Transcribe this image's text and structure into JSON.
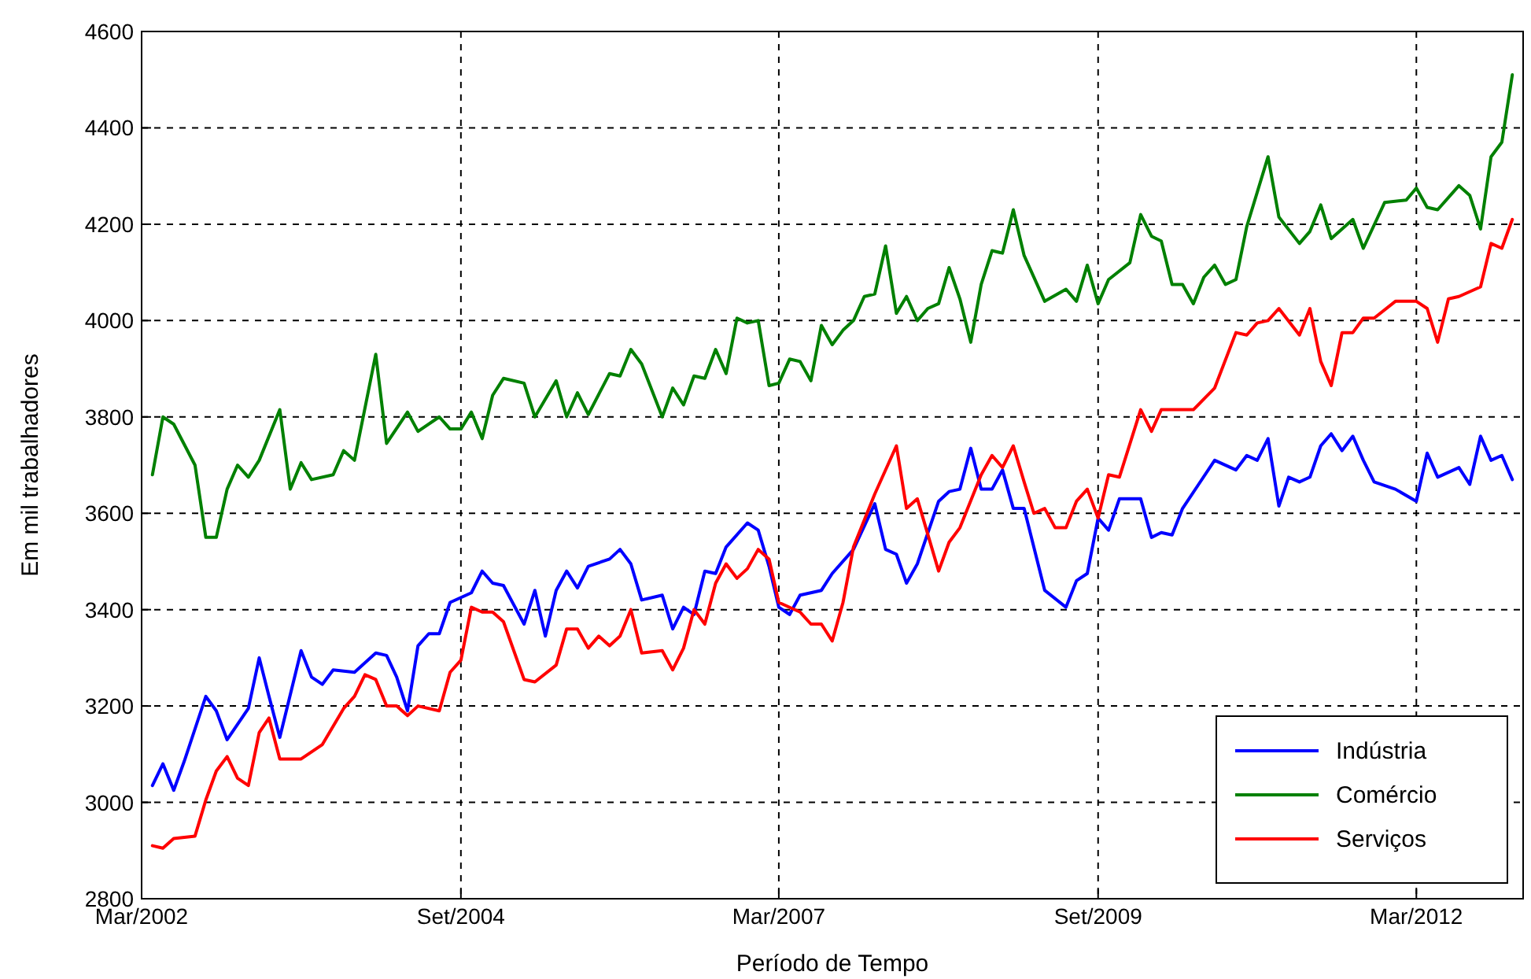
{
  "chart_data": {
    "type": "line",
    "xlabel": "Período de Tempo",
    "ylabel": "Em mil trabalhadores",
    "xlim": [
      "2002-03",
      "2013-01"
    ],
    "ylim": [
      2800,
      4600
    ],
    "xticks": [
      {
        "value": "2002-03",
        "label": "Mar/2002"
      },
      {
        "value": "2004-09",
        "label": "Set/2004"
      },
      {
        "value": "2007-03",
        "label": "Mar/2007"
      },
      {
        "value": "2009-09",
        "label": "Set/2009"
      },
      {
        "value": "2012-03",
        "label": "Mar/2012"
      }
    ],
    "yticks": [
      2800,
      3000,
      3200,
      3400,
      3600,
      3800,
      4000,
      4200,
      4400,
      4600
    ],
    "grid": true,
    "legend": "bottom right",
    "line_style": "solid",
    "marker": "none",
    "series": [
      {
        "name": "Indústria",
        "color": "#0000ff",
        "x": [
          "2002-04",
          "2002-05",
          "2002-06",
          "2002-07",
          "2002-09",
          "2002-10",
          "2002-11",
          "2003-01",
          "2003-02",
          "2003-03",
          "2003-04",
          "2003-06",
          "2003-07",
          "2003-08",
          "2003-09",
          "2003-11",
          "2004-01",
          "2004-02",
          "2004-03",
          "2004-04",
          "2004-05",
          "2004-06",
          "2004-07",
          "2004-08",
          "2004-10",
          "2004-11",
          "2004-12",
          "2005-01",
          "2005-03",
          "2005-04",
          "2005-05",
          "2005-06",
          "2005-07",
          "2005-08",
          "2005-09",
          "2005-11",
          "2005-12",
          "2006-01",
          "2006-02",
          "2006-04",
          "2006-05",
          "2006-06",
          "2006-07",
          "2006-08",
          "2006-09",
          "2006-10",
          "2006-12",
          "2007-01",
          "2007-02",
          "2007-03",
          "2007-04",
          "2007-05",
          "2007-07",
          "2007-08",
          "2007-10",
          "2007-12",
          "2008-01",
          "2008-02",
          "2008-03",
          "2008-04",
          "2008-06",
          "2008-07",
          "2008-08",
          "2008-09",
          "2008-10",
          "2008-11",
          "2008-12",
          "2009-01",
          "2009-02",
          "2009-04",
          "2009-06",
          "2009-07",
          "2009-08",
          "2009-09",
          "2009-10",
          "2009-11",
          "2010-01",
          "2010-02",
          "2010-03",
          "2010-04",
          "2010-05",
          "2010-08",
          "2010-10",
          "2010-11",
          "2010-12",
          "2011-01",
          "2011-02",
          "2011-03",
          "2011-04",
          "2011-05",
          "2011-06",
          "2011-07",
          "2011-08",
          "2011-09",
          "2011-10",
          "2011-11",
          "2012-01",
          "2012-03",
          "2012-04",
          "2012-05",
          "2012-07",
          "2012-08",
          "2012-09",
          "2012-10",
          "2012-11",
          "2012-12"
        ],
        "values": [
          3035,
          3080,
          3025,
          3085,
          3220,
          3190,
          3130,
          3195,
          3300,
          3220,
          3135,
          3315,
          3260,
          3245,
          3275,
          3270,
          3310,
          3305,
          3260,
          3190,
          3325,
          3350,
          3350,
          3415,
          3435,
          3480,
          3455,
          3450,
          3370,
          3440,
          3345,
          3440,
          3480,
          3445,
          3490,
          3505,
          3525,
          3495,
          3420,
          3430,
          3360,
          3405,
          3390,
          3480,
          3475,
          3530,
          3580,
          3565,
          3490,
          3405,
          3390,
          3430,
          3440,
          3475,
          3525,
          3620,
          3525,
          3515,
          3455,
          3495,
          3625,
          3645,
          3650,
          3735,
          3650,
          3650,
          3690,
          3610,
          3610,
          3440,
          3405,
          3460,
          3475,
          3590,
          3565,
          3630,
          3630,
          3550,
          3560,
          3555,
          3610,
          3710,
          3690,
          3720,
          3710,
          3755,
          3615,
          3675,
          3665,
          3675,
          3740,
          3765,
          3730,
          3760,
          3710,
          3665,
          3650,
          3625,
          3725,
          3675,
          3695,
          3660,
          3760,
          3710,
          3720,
          3670
        ]
      },
      {
        "name": "Comércio",
        "color": "#008000",
        "x": [
          "2002-04",
          "2002-05",
          "2002-06",
          "2002-08",
          "2002-09",
          "2002-10",
          "2002-11",
          "2002-12",
          "2003-01",
          "2003-02",
          "2003-04",
          "2003-05",
          "2003-06",
          "2003-07",
          "2003-09",
          "2003-10",
          "2003-11",
          "2004-01",
          "2004-02",
          "2004-04",
          "2004-05",
          "2004-07",
          "2004-08",
          "2004-09",
          "2004-10",
          "2004-11",
          "2004-12",
          "2005-01",
          "2005-03",
          "2005-04",
          "2005-06",
          "2005-07",
          "2005-08",
          "2005-09",
          "2005-11",
          "2005-12",
          "2006-01",
          "2006-02",
          "2006-04",
          "2006-05",
          "2006-06",
          "2006-07",
          "2006-08",
          "2006-09",
          "2006-10",
          "2006-11",
          "2006-12",
          "2007-01",
          "2007-02",
          "2007-03",
          "2007-04",
          "2007-05",
          "2007-06",
          "2007-07",
          "2007-08",
          "2007-09",
          "2007-10",
          "2007-11",
          "2007-12",
          "2008-01",
          "2008-02",
          "2008-03",
          "2008-04",
          "2008-05",
          "2008-06",
          "2008-07",
          "2008-08",
          "2008-09",
          "2008-10",
          "2008-11",
          "2008-12",
          "2009-01",
          "2009-02",
          "2009-04",
          "2009-06",
          "2009-07",
          "2009-08",
          "2009-09",
          "2009-10",
          "2009-12",
          "2010-01",
          "2010-02",
          "2010-03",
          "2010-04",
          "2010-05",
          "2010-06",
          "2010-07",
          "2010-08",
          "2010-09",
          "2010-10",
          "2010-11",
          "2011-01",
          "2011-02",
          "2011-04",
          "2011-05",
          "2011-06",
          "2011-07",
          "2011-09",
          "2011-10",
          "2011-12",
          "2012-02",
          "2012-03",
          "2012-04",
          "2012-05",
          "2012-07",
          "2012-08",
          "2012-09",
          "2012-10",
          "2012-11",
          "2012-12"
        ],
        "values": [
          3680,
          3800,
          3785,
          3700,
          3550,
          3550,
          3650,
          3700,
          3675,
          3710,
          3815,
          3650,
          3705,
          3670,
          3680,
          3730,
          3710,
          3930,
          3745,
          3810,
          3770,
          3800,
          3775,
          3775,
          3810,
          3755,
          3845,
          3880,
          3870,
          3800,
          3875,
          3800,
          3850,
          3805,
          3890,
          3885,
          3940,
          3910,
          3800,
          3860,
          3825,
          3885,
          3880,
          3940,
          3890,
          4005,
          3995,
          4000,
          3865,
          3870,
          3920,
          3915,
          3875,
          3990,
          3950,
          3980,
          4000,
          4050,
          4055,
          4155,
          4015,
          4050,
          4000,
          4025,
          4035,
          4110,
          4045,
          3955,
          4075,
          4145,
          4140,
          4230,
          4135,
          4040,
          4065,
          4040,
          4115,
          4035,
          4085,
          4120,
          4220,
          4175,
          4165,
          4075,
          4075,
          4035,
          4090,
          4115,
          4075,
          4085,
          4195,
          4340,
          4215,
          4160,
          4185,
          4240,
          4170,
          4210,
          4150,
          4245,
          4250,
          4275,
          4235,
          4230,
          4280,
          4260,
          4190,
          4340,
          4370,
          4510
        ]
      },
      {
        "name": "Serviços",
        "color": "#ff0000",
        "x": [
          "2002-04",
          "2002-05",
          "2002-06",
          "2002-08",
          "2002-09",
          "2002-10",
          "2002-11",
          "2002-12",
          "2003-01",
          "2003-02",
          "2003-03",
          "2003-04",
          "2003-06",
          "2003-08",
          "2003-10",
          "2003-11",
          "2003-12",
          "2004-01",
          "2004-02",
          "2004-03",
          "2004-04",
          "2004-05",
          "2004-07",
          "2004-08",
          "2004-09",
          "2004-10",
          "2004-11",
          "2004-12",
          "2005-01",
          "2005-03",
          "2005-04",
          "2005-06",
          "2005-07",
          "2005-08",
          "2005-09",
          "2005-10",
          "2005-11",
          "2005-12",
          "2006-01",
          "2006-02",
          "2006-04",
          "2006-05",
          "2006-06",
          "2006-07",
          "2006-08",
          "2006-09",
          "2006-10",
          "2006-11",
          "2006-12",
          "2007-01",
          "2007-02",
          "2007-03",
          "2007-05",
          "2007-06",
          "2007-07",
          "2007-08",
          "2007-09",
          "2007-10",
          "2007-12",
          "2008-02",
          "2008-03",
          "2008-04",
          "2008-06",
          "2008-07",
          "2008-08",
          "2008-10",
          "2008-11",
          "2008-12",
          "2009-01",
          "2009-02",
          "2009-03",
          "2009-04",
          "2009-05",
          "2009-06",
          "2009-07",
          "2009-08",
          "2009-09",
          "2009-10",
          "2009-11",
          "2010-01",
          "2010-02",
          "2010-03",
          "2010-06",
          "2010-08",
          "2010-10",
          "2010-11",
          "2010-12",
          "2011-01",
          "2011-02",
          "2011-04",
          "2011-05",
          "2011-06",
          "2011-07",
          "2011-08",
          "2011-09",
          "2011-10",
          "2011-11",
          "2012-01",
          "2012-03",
          "2012-04",
          "2012-05",
          "2012-06",
          "2012-07",
          "2012-09",
          "2012-10",
          "2012-11",
          "2012-12"
        ],
        "values": [
          2910,
          2905,
          2925,
          2930,
          3005,
          3065,
          3095,
          3050,
          3035,
          3145,
          3175,
          3090,
          3090,
          3120,
          3195,
          3220,
          3265,
          3255,
          3200,
          3200,
          3180,
          3200,
          3190,
          3270,
          3295,
          3405,
          3395,
          3395,
          3375,
          3255,
          3250,
          3285,
          3360,
          3360,
          3320,
          3345,
          3325,
          3345,
          3400,
          3310,
          3315,
          3275,
          3320,
          3400,
          3370,
          3455,
          3495,
          3465,
          3485,
          3525,
          3505,
          3415,
          3395,
          3370,
          3370,
          3335,
          3415,
          3530,
          3640,
          3740,
          3610,
          3630,
          3480,
          3540,
          3570,
          3680,
          3720,
          3695,
          3740,
          3665,
          3600,
          3610,
          3570,
          3570,
          3625,
          3650,
          3590,
          3680,
          3675,
          3815,
          3770,
          3815,
          3815,
          3860,
          3975,
          3970,
          3995,
          4000,
          4025,
          3970,
          4025,
          3915,
          3865,
          3975,
          3975,
          4005,
          4005,
          4040,
          4040,
          4025,
          3955,
          4045,
          4050,
          4070,
          4160,
          4150,
          4210
        ]
      }
    ]
  }
}
